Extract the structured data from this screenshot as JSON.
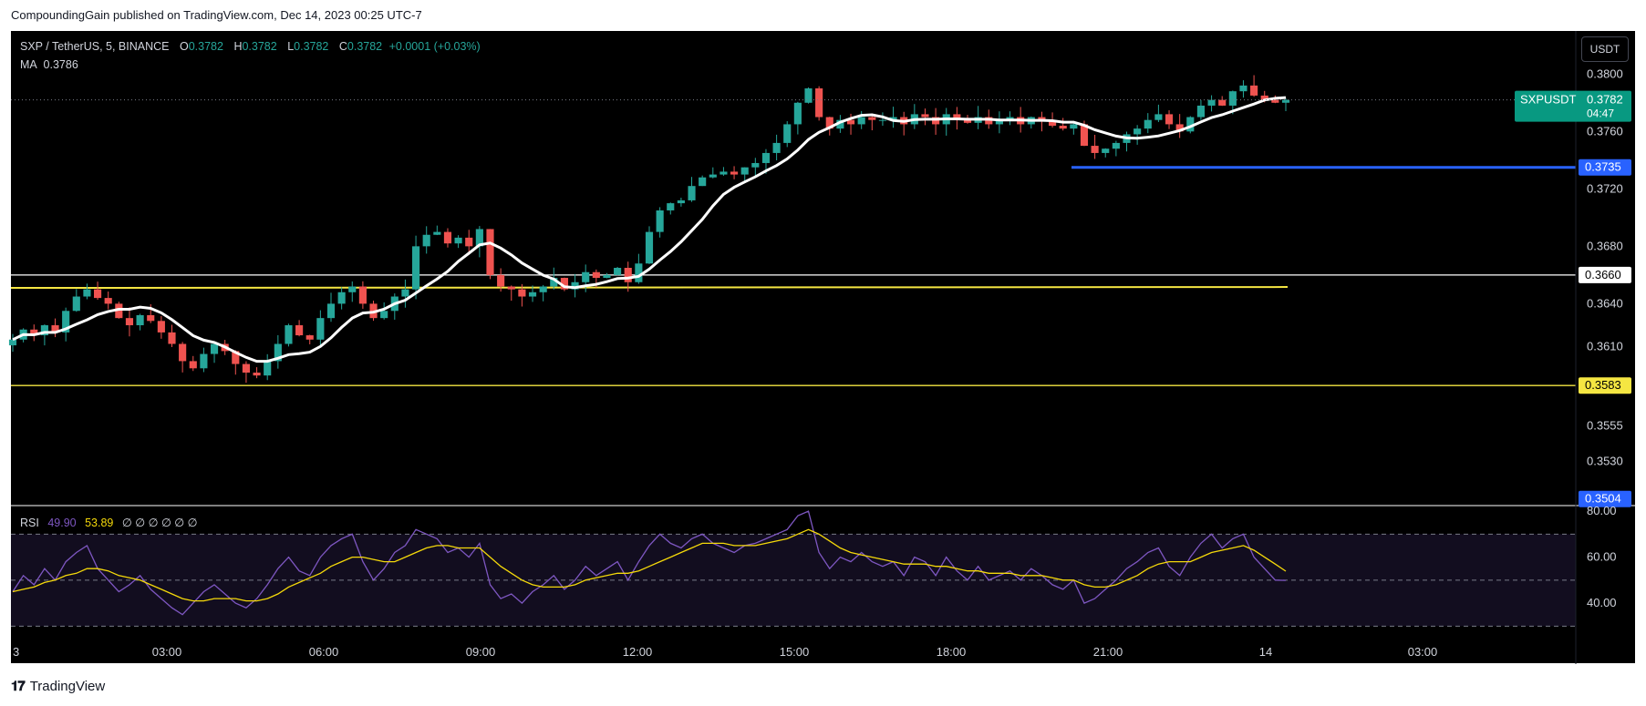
{
  "header": {
    "text": "CompoundingGain published on TradingView.com, Dec 14, 2023 00:25 UTC-7"
  },
  "legend": {
    "symbol": "SXP / TetherUS, 5, BINANCE",
    "o_label": "O",
    "o": "0.3782",
    "h_label": "H",
    "h": "0.3782",
    "l_label": "L",
    "l": "0.3782",
    "c_label": "C",
    "c": "0.3782",
    "change": "+0.0001 (+0.03%)",
    "ma_label": "MA",
    "ma_value": "0.3786"
  },
  "currency_button": "USDT",
  "rsi_legend": {
    "label": "RSI",
    "rsi": "49.90",
    "ma": "53.89",
    "empty": "∅ ∅ ∅ ∅ ∅ ∅"
  },
  "footer": {
    "logo": "𝟏𝟕",
    "brand": "TradingView"
  },
  "colors": {
    "bg": "#000000",
    "up": "#26a69a",
    "down": "#ef5350",
    "ma": "#ffffff",
    "rsi": "#7e57c2",
    "rsi_ma": "#f5d90a",
    "blue_line": "#2962ff",
    "yellow_line": "#f5e642"
  },
  "chart_data": {
    "type": "candlestick",
    "symbol": "SXPUSDT",
    "price_axis": {
      "ylim": [
        0.35,
        0.383
      ],
      "ticks": [
        "0.3800",
        "0.3760",
        "0.3720",
        "0.3680",
        "0.3640",
        "0.3610",
        "0.3555",
        "0.3530"
      ]
    },
    "time_axis": {
      "labels": [
        "3",
        "03:00",
        "06:00",
        "09:00",
        "12:00",
        "15:00",
        "18:00",
        "21:00",
        "14",
        "03:00"
      ]
    },
    "last_price": {
      "label": "SXPUSDT",
      "value": "0.3782",
      "countdown": "04:47"
    },
    "horizontal_lines": [
      {
        "name": "resistance-white",
        "value": 0.366,
        "label": "0.3660",
        "color": "#ffffff"
      },
      {
        "name": "support-yellow",
        "value": 0.3583,
        "label": "0.3583",
        "color": "#f5e642"
      },
      {
        "name": "low-blue",
        "value": 0.3504,
        "label": "0.3504",
        "color": "#2962ff"
      }
    ],
    "trend_lines": [
      {
        "name": "yellow-level",
        "value": 0.3651,
        "color": "#f5e642"
      },
      {
        "name": "blue-level",
        "value": 0.3735,
        "label": "0.3735",
        "color": "#2962ff"
      }
    ],
    "close_series": [
      0.3615,
      0.3622,
      0.3618,
      0.3625,
      0.362,
      0.3635,
      0.3645,
      0.365,
      0.3644,
      0.364,
      0.363,
      0.3625,
      0.3632,
      0.3628,
      0.362,
      0.3612,
      0.36,
      0.3595,
      0.3605,
      0.3612,
      0.3607,
      0.3598,
      0.3592,
      0.359,
      0.36,
      0.3612,
      0.3625,
      0.3618,
      0.3615,
      0.363,
      0.364,
      0.3648,
      0.3652,
      0.364,
      0.363,
      0.3635,
      0.3645,
      0.365,
      0.368,
      0.3688,
      0.369,
      0.3682,
      0.3686,
      0.368,
      0.3692,
      0.366,
      0.3652,
      0.365,
      0.3645,
      0.3648,
      0.3652,
      0.3658,
      0.365,
      0.3655,
      0.3662,
      0.3658,
      0.366,
      0.3665,
      0.3655,
      0.3668,
      0.369,
      0.3705,
      0.371,
      0.3712,
      0.3722,
      0.3728,
      0.373,
      0.3732,
      0.373,
      0.3735,
      0.3738,
      0.3745,
      0.3752,
      0.3765,
      0.378,
      0.379,
      0.377,
      0.3762,
      0.3768,
      0.3765,
      0.377,
      0.3768,
      0.3768,
      0.377,
      0.3765,
      0.3772,
      0.377,
      0.3765,
      0.3772,
      0.3768,
      0.3766,
      0.377,
      0.3765,
      0.3768,
      0.377,
      0.3765,
      0.377,
      0.3768,
      0.3764,
      0.3762,
      0.3765,
      0.375,
      0.3745,
      0.3748,
      0.3752,
      0.3758,
      0.3762,
      0.3768,
      0.3772,
      0.3765,
      0.376,
      0.377,
      0.3778,
      0.3782,
      0.3778,
      0.3788,
      0.3792,
      0.3785,
      0.3782,
      0.378,
      0.3782
    ],
    "ma_series_note": "Moving average (white line) computed from close_series",
    "rsi": {
      "ylim": [
        25,
        82
      ],
      "ticks": [
        "80.00",
        "60.00",
        "40.00"
      ],
      "bands": {
        "upper": 70,
        "middle": 50,
        "lower": 30
      },
      "rsi_values": [
        45,
        52,
        48,
        55,
        50,
        58,
        62,
        65,
        55,
        50,
        45,
        48,
        52,
        46,
        42,
        38,
        35,
        40,
        45,
        48,
        44,
        40,
        38,
        42,
        48,
        55,
        60,
        54,
        52,
        60,
        65,
        68,
        70,
        58,
        50,
        55,
        62,
        65,
        72,
        70,
        68,
        62,
        64,
        60,
        66,
        48,
        42,
        44,
        40,
        45,
        48,
        52,
        46,
        50,
        56,
        52,
        55,
        58,
        50,
        58,
        65,
        70,
        66,
        64,
        68,
        70,
        66,
        64,
        62,
        65,
        66,
        68,
        70,
        72,
        78,
        80,
        62,
        55,
        60,
        58,
        62,
        58,
        56,
        58,
        52,
        60,
        58,
        52,
        60,
        54,
        50,
        56,
        50,
        52,
        54,
        50,
        55,
        52,
        48,
        46,
        50,
        40,
        42,
        46,
        50,
        55,
        58,
        62,
        64,
        56,
        52,
        60,
        66,
        70,
        64,
        68,
        70,
        60,
        55,
        50,
        49.9
      ],
      "rsi_ma_values": [
        45,
        46,
        47,
        49,
        50,
        52,
        53,
        55,
        55,
        54,
        52,
        51,
        50,
        48,
        46,
        44,
        42,
        41,
        41,
        42,
        42,
        42,
        41,
        41,
        42,
        44,
        47,
        49,
        51,
        53,
        56,
        58,
        60,
        60,
        59,
        58,
        58,
        60,
        62,
        64,
        65,
        65,
        64,
        64,
        64,
        60,
        56,
        53,
        50,
        48,
        47,
        47,
        47,
        48,
        50,
        51,
        52,
        53,
        53,
        54,
        56,
        58,
        60,
        62,
        64,
        66,
        66,
        66,
        65,
        65,
        65,
        66,
        67,
        68,
        70,
        72,
        70,
        67,
        64,
        62,
        61,
        60,
        59,
        58,
        57,
        57,
        57,
        56,
        56,
        55,
        54,
        54,
        53,
        53,
        53,
        52,
        52,
        52,
        51,
        50,
        50,
        48,
        47,
        47,
        48,
        50,
        52,
        55,
        57,
        58,
        58,
        58,
        60,
        62,
        63,
        64,
        65,
        63,
        60,
        57,
        53.89
      ]
    }
  }
}
